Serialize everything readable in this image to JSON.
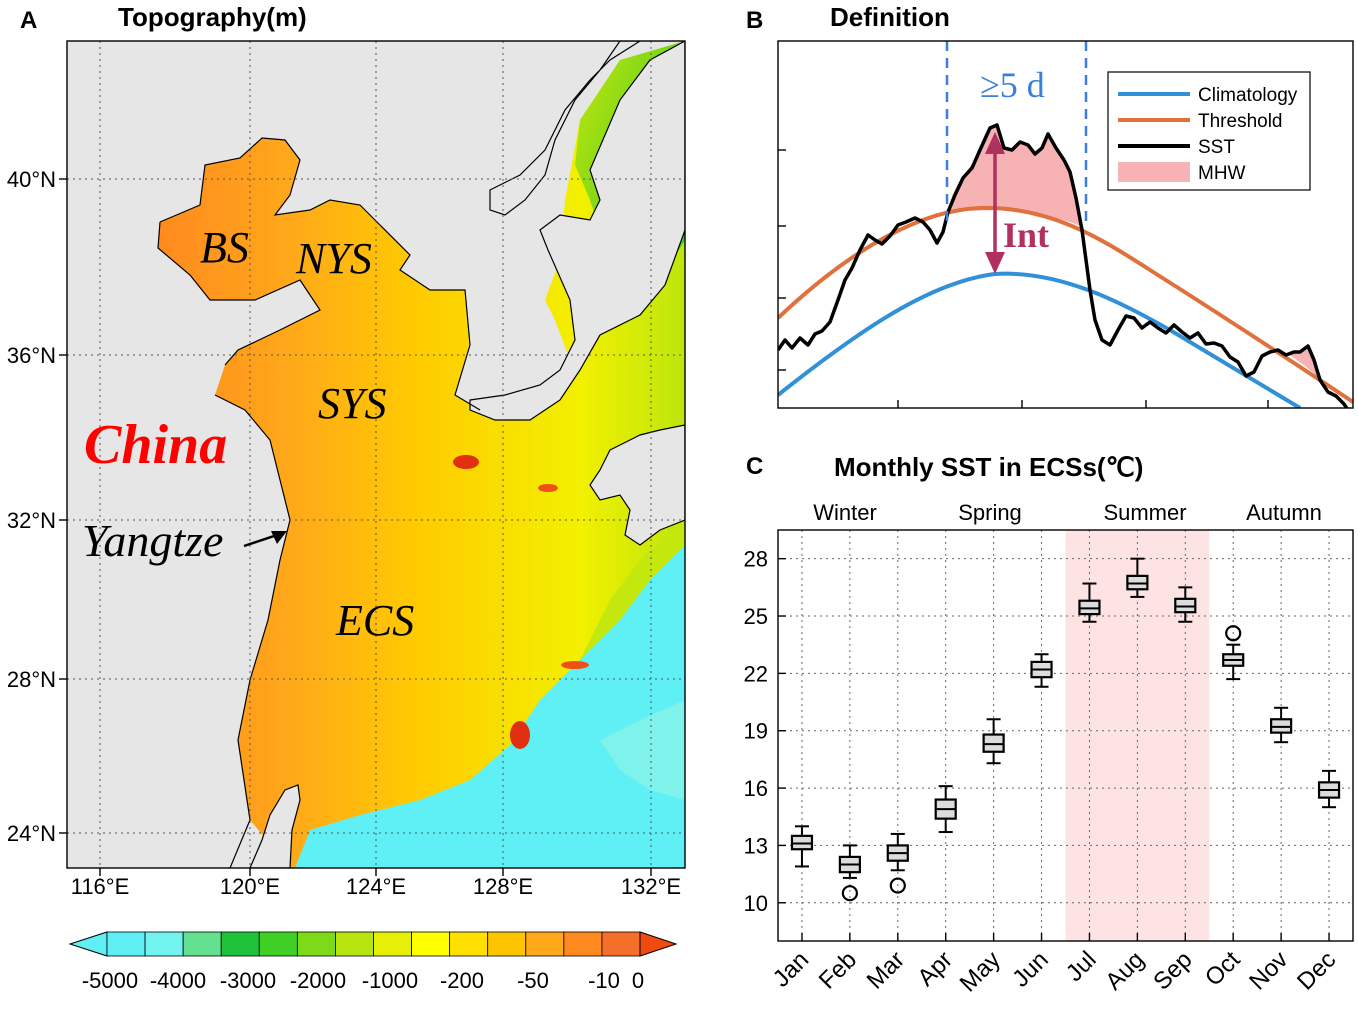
{
  "panel_a": {
    "letter": "A",
    "title": "Topography(m)",
    "lat_ticks": [
      "40°N",
      "36°N",
      "32°N",
      "28°N",
      "24°N"
    ],
    "lon_ticks": [
      "116°E",
      "120°E",
      "124°E",
      "128°E",
      "132°E"
    ],
    "labels": {
      "bs": "BS",
      "nys": "NYS",
      "sys": "SYS",
      "ecs": "ECS",
      "china": "China",
      "yangtze": "Yangtze"
    },
    "colorbar": {
      "ticks": [
        "-5000",
        "-4000",
        "-3000",
        "-2000",
        "-1000",
        "-200",
        "-50",
        "-10",
        "0"
      ],
      "colors": [
        "#5ff0f5",
        "#73f3f0",
        "#62e08f",
        "#1ec23a",
        "#3fcf25",
        "#7dda18",
        "#b8e40f",
        "#e6ef06",
        "#ffff00",
        "#ffe000",
        "#ffc400",
        "#ffa81a",
        "#ff8a1f",
        "#f4702a"
      ]
    },
    "colors": {
      "land": "#e6e6e6",
      "deep": "#5ff0f5",
      "shelf": "#ffcc00",
      "coast": "#ff8a1f",
      "china_label": "#ff0000"
    }
  },
  "panel_b": {
    "letter": "B",
    "title": "Definition",
    "duration_label": "≥5 d",
    "intensity_label": "Int",
    "legend": [
      "Climatology",
      "Threshold",
      "SST",
      "MHW"
    ],
    "colors": {
      "climatology": "#3090d8",
      "threshold": "#e0703c",
      "sst": "#000000",
      "mhw": "#f7b3b3",
      "int": "#b03060",
      "dash": "#3a7fd8"
    }
  },
  "panel_c": {
    "letter": "C",
    "title": "Monthly SST in ECSs(℃)",
    "seasons": [
      "Winter",
      "Spring",
      "Summer",
      "Autumn"
    ],
    "summer_shade": "#fde3e3"
  },
  "chart_data": {
    "type": "box",
    "title": "Monthly SST in ECSs(℃)",
    "categories": [
      "Jan",
      "Feb",
      "Mar",
      "Apr",
      "May",
      "Jun",
      "Jul",
      "Aug",
      "Sep",
      "Oct",
      "Nov",
      "Dec"
    ],
    "ylim": [
      8,
      29.5
    ],
    "yticks": [
      "10",
      "13",
      "16",
      "19",
      "22",
      "25",
      "28"
    ],
    "grid": true,
    "boxes": [
      {
        "min": 11.9,
        "q1": 12.8,
        "median": 13.1,
        "q3": 13.5,
        "max": 14.0,
        "outliers": []
      },
      {
        "min": 11.3,
        "q1": 11.6,
        "median": 12.0,
        "q3": 12.4,
        "max": 13.0,
        "outliers": [
          10.5
        ]
      },
      {
        "min": 11.7,
        "q1": 12.2,
        "median": 12.6,
        "q3": 13.0,
        "max": 13.6,
        "outliers": [
          10.9
        ]
      },
      {
        "min": 13.7,
        "q1": 14.4,
        "median": 14.9,
        "q3": 15.4,
        "max": 16.1,
        "outliers": []
      },
      {
        "min": 17.3,
        "q1": 17.9,
        "median": 18.3,
        "q3": 18.8,
        "max": 19.6,
        "outliers": []
      },
      {
        "min": 21.3,
        "q1": 21.8,
        "median": 22.2,
        "q3": 22.6,
        "max": 23.0,
        "outliers": []
      },
      {
        "min": 24.7,
        "q1": 25.1,
        "median": 25.4,
        "q3": 25.8,
        "max": 26.7,
        "outliers": []
      },
      {
        "min": 26.0,
        "q1": 26.4,
        "median": 26.7,
        "q3": 27.1,
        "max": 28.0,
        "outliers": []
      },
      {
        "min": 24.7,
        "q1": 25.2,
        "median": 25.5,
        "q3": 25.9,
        "max": 26.5,
        "outliers": []
      },
      {
        "min": 21.7,
        "q1": 22.4,
        "median": 22.7,
        "q3": 23.0,
        "max": 23.5,
        "outliers": [
          24.1
        ]
      },
      {
        "min": 18.4,
        "q1": 18.9,
        "median": 19.2,
        "q3": 19.6,
        "max": 20.2,
        "outliers": []
      },
      {
        "min": 15.0,
        "q1": 15.5,
        "median": 15.9,
        "q3": 16.3,
        "max": 16.9,
        "outliers": []
      }
    ]
  }
}
